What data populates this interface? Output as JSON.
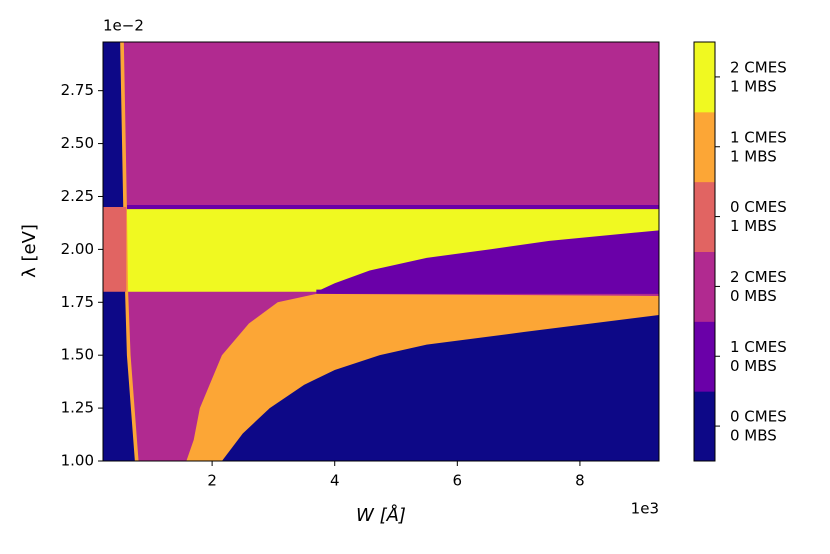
{
  "chart_data": {
    "type": "phase",
    "xlabel": "W [Å]",
    "ylabel": "λ [eV]",
    "x_offset": "1e3",
    "y_offset": "1e−2",
    "xlim": [
      0.22,
      9.29
    ],
    "ylim": [
      1.0,
      2.98
    ],
    "xticks": [
      2,
      4,
      6,
      8
    ],
    "yticks": [
      {
        "value": 1.0,
        "label": "1.00"
      },
      {
        "value": 1.25,
        "label": "1.25"
      },
      {
        "value": 1.5,
        "label": "1.50"
      },
      {
        "value": 1.75,
        "label": "1.75"
      },
      {
        "value": 2.0,
        "label": "2.00"
      },
      {
        "value": 2.25,
        "label": "2.25"
      },
      {
        "value": 2.5,
        "label": "2.50"
      },
      {
        "value": 2.75,
        "label": "2.75"
      }
    ],
    "colorbar": {
      "colors": [
        "#0d0887",
        "#6a00a8",
        "#b12a90",
        "#e16462",
        "#fca636",
        "#f0f921"
      ],
      "labels": [
        [
          "0 CMES",
          "0 MBS"
        ],
        [
          "1 CMES",
          "0 MBS"
        ],
        [
          "2 CMES",
          "0 MBS"
        ],
        [
          "0 CMES",
          "1 MBS"
        ],
        [
          "1 CMES",
          "1 MBS"
        ],
        [
          "2 CMES",
          "1 MBS"
        ]
      ]
    },
    "regions": [
      {
        "level": 2,
        "polygon": [
          [
            0.22,
            1.0
          ],
          [
            9.29,
            1.0
          ],
          [
            9.29,
            2.98
          ],
          [
            0.22,
            2.98
          ]
        ]
      },
      {
        "level": 5,
        "polygon": [
          [
            0.61,
            1.8
          ],
          [
            9.29,
            1.8
          ],
          [
            9.29,
            2.2
          ],
          [
            0.61,
            2.2
          ]
        ]
      },
      {
        "level": 1,
        "polygon": [
          [
            3.7,
            1.8
          ],
          [
            4.0,
            1.84
          ],
          [
            4.57,
            1.9
          ],
          [
            5.5,
            1.96
          ],
          [
            6.53,
            2.0
          ],
          [
            7.5,
            2.04
          ],
          [
            9.29,
            2.09
          ],
          [
            9.29,
            1.8
          ]
        ]
      },
      {
        "level": 1,
        "polygon": [
          [
            0.61,
            2.19
          ],
          [
            9.29,
            2.19
          ],
          [
            9.29,
            2.21
          ],
          [
            0.61,
            2.21
          ]
        ]
      },
      {
        "level": 1,
        "polygon": [
          [
            3.7,
            1.79
          ],
          [
            9.29,
            1.79
          ],
          [
            9.29,
            1.81
          ],
          [
            3.7,
            1.81
          ]
        ]
      },
      {
        "level": 4,
        "polygon": [
          [
            1.58,
            1.0
          ],
          [
            1.7,
            1.1
          ],
          [
            1.8,
            1.25
          ],
          [
            2.16,
            1.5
          ],
          [
            2.6,
            1.65
          ],
          [
            3.07,
            1.75
          ],
          [
            3.7,
            1.79
          ],
          [
            9.29,
            1.78
          ],
          [
            9.29,
            1.0
          ]
        ]
      },
      {
        "level": 0,
        "polygon": [
          [
            2.16,
            1.0
          ],
          [
            2.5,
            1.13
          ],
          [
            2.94,
            1.25
          ],
          [
            3.5,
            1.36
          ],
          [
            4.0,
            1.43
          ],
          [
            4.73,
            1.5
          ],
          [
            5.5,
            1.55
          ],
          [
            7.1,
            1.61
          ],
          [
            9.29,
            1.69
          ],
          [
            9.29,
            1.0
          ]
        ]
      },
      {
        "level": 4,
        "polygon": [
          [
            0.22,
            1.0
          ],
          [
            0.8,
            1.0
          ],
          [
            0.67,
            1.5
          ],
          [
            0.63,
            1.8
          ],
          [
            0.61,
            2.2
          ],
          [
            0.56,
            2.98
          ],
          [
            0.22,
            2.98
          ]
        ]
      },
      {
        "level": 0,
        "polygon": [
          [
            0.22,
            1.0
          ],
          [
            0.74,
            1.0
          ],
          [
            0.61,
            1.5
          ],
          [
            0.58,
            1.8
          ],
          [
            0.55,
            2.2
          ],
          [
            0.5,
            2.98
          ],
          [
            0.22,
            2.98
          ]
        ]
      },
      {
        "level": 3,
        "polygon": [
          [
            0.22,
            1.8
          ],
          [
            0.6,
            1.8
          ],
          [
            0.6,
            2.2
          ],
          [
            0.22,
            2.2
          ]
        ]
      }
    ]
  }
}
